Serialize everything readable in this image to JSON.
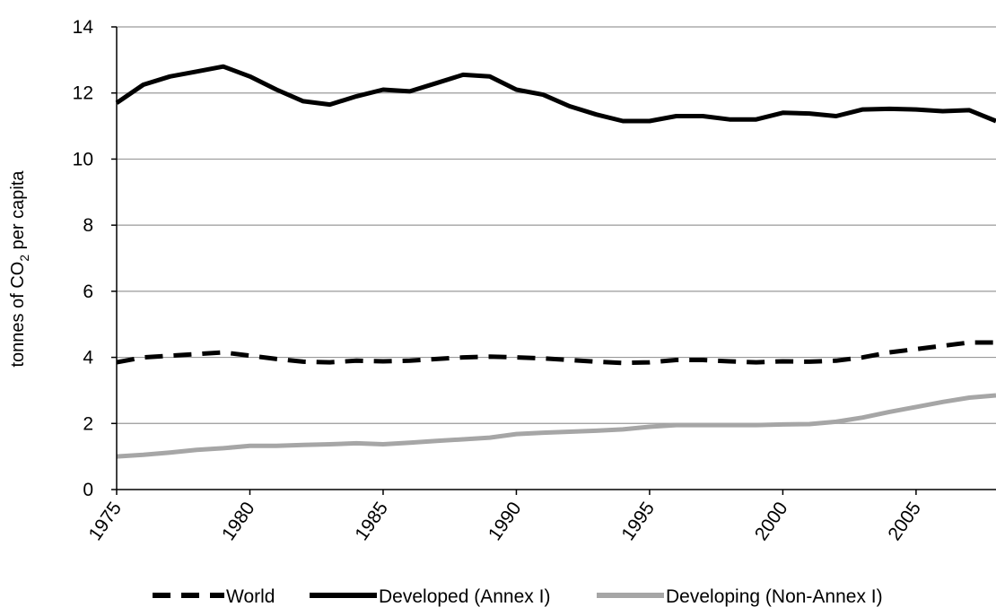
{
  "chart_data": {
    "type": "line",
    "title": "",
    "xlabel": "",
    "ylabel": {
      "prefix": "tonnes of CO",
      "subscript": "2",
      "suffix": " per capita"
    },
    "xlim": [
      1975,
      2008
    ],
    "ylim": [
      0,
      14
    ],
    "y_ticks": [
      0,
      2,
      4,
      6,
      8,
      10,
      12,
      14
    ],
    "x_ticks": [
      1975,
      1980,
      1985,
      1990,
      1995,
      2000,
      2005
    ],
    "x_tick_labels": [
      "1975",
      "1980",
      "1985",
      "1990",
      "1995",
      "2000",
      "2005"
    ],
    "grid": "horizontal",
    "legend_position": "bottom",
    "x": [
      1975,
      1976,
      1977,
      1978,
      1979,
      1980,
      1981,
      1982,
      1983,
      1984,
      1985,
      1986,
      1987,
      1988,
      1989,
      1990,
      1991,
      1992,
      1993,
      1994,
      1995,
      1996,
      1997,
      1998,
      1999,
      2000,
      2001,
      2002,
      2003,
      2004,
      2005,
      2006,
      2007,
      2008
    ],
    "series": [
      {
        "name": "World",
        "style": "dashed",
        "color": "#000000",
        "values": [
          3.85,
          4.0,
          4.05,
          4.1,
          4.15,
          4.05,
          3.95,
          3.87,
          3.85,
          3.9,
          3.88,
          3.9,
          3.95,
          4.0,
          4.02,
          4.0,
          3.97,
          3.92,
          3.87,
          3.83,
          3.85,
          3.92,
          3.92,
          3.88,
          3.85,
          3.88,
          3.87,
          3.9,
          4.0,
          4.15,
          4.25,
          4.35,
          4.45,
          4.45
        ]
      },
      {
        "name": "Developed (Annex I)",
        "style": "solid",
        "color": "#000000",
        "values": [
          11.7,
          12.25,
          12.5,
          12.65,
          12.8,
          12.5,
          12.1,
          11.75,
          11.65,
          11.9,
          12.1,
          12.05,
          12.3,
          12.55,
          12.5,
          12.1,
          11.95,
          11.6,
          11.35,
          11.15,
          11.15,
          11.3,
          11.3,
          11.2,
          11.2,
          11.4,
          11.38,
          11.3,
          11.5,
          11.52,
          11.5,
          11.45,
          11.48,
          11.15
        ]
      },
      {
        "name": "Developing (Non-Annex I)",
        "style": "solid",
        "color": "#a6a6a6",
        "values": [
          1.0,
          1.05,
          1.12,
          1.2,
          1.25,
          1.32,
          1.32,
          1.35,
          1.37,
          1.4,
          1.37,
          1.42,
          1.47,
          1.52,
          1.57,
          1.68,
          1.72,
          1.75,
          1.78,
          1.82,
          1.9,
          1.95,
          1.95,
          1.95,
          1.95,
          1.97,
          1.98,
          2.05,
          2.18,
          2.35,
          2.5,
          2.65,
          2.78,
          2.85
        ]
      }
    ]
  }
}
